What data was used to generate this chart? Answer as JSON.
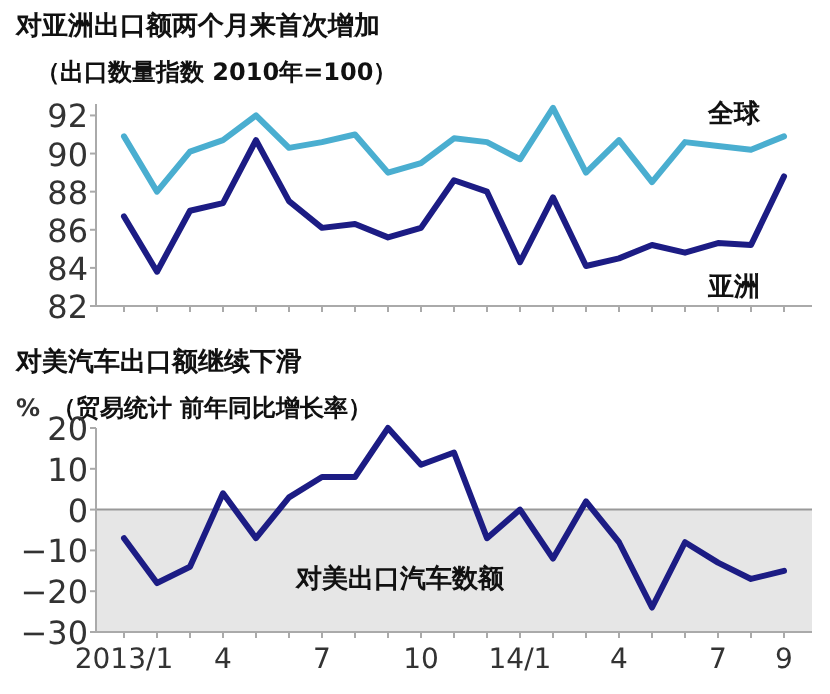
{
  "chart_data": [
    {
      "type": "line",
      "title": "对亚洲出口额两个月来首次增加",
      "subtitle": "（出口数量指数 2010年=100）",
      "categories": [
        null,
        null,
        null,
        null,
        null,
        null,
        null,
        null,
        null,
        null,
        null,
        null,
        null,
        null,
        null,
        null,
        null,
        null,
        null,
        null,
        null
      ],
      "series": [
        {
          "name": "全球",
          "color": "#4aaed0",
          "values": [
            90.9,
            88.0,
            90.1,
            90.7,
            92.0,
            90.3,
            90.6,
            91.0,
            89.0,
            89.5,
            90.8,
            90.6,
            89.7,
            92.4,
            89.0,
            90.7,
            88.5,
            90.6,
            90.4,
            90.2,
            90.9
          ]
        },
        {
          "name": "亚洲",
          "color": "#1c1c84",
          "values": [
            86.7,
            83.8,
            87.0,
            87.4,
            90.7,
            87.5,
            86.1,
            86.3,
            85.6,
            86.1,
            88.6,
            88.0,
            84.3,
            87.7,
            84.1,
            84.5,
            85.2,
            84.8,
            85.3,
            85.2,
            88.8
          ]
        }
      ],
      "ylim": [
        82,
        92.6
      ],
      "yticks": [
        82,
        84,
        86,
        88,
        90,
        92
      ],
      "tick_labels": "y",
      "grid": false
    },
    {
      "type": "line",
      "title": "对美汽车出口额继续下滑",
      "subtitle": "（贸易统计 前年同比增长率）",
      "ylabel": "%",
      "categories": [
        "2013/1",
        null,
        null,
        "4",
        null,
        null,
        "7",
        null,
        null,
        "10",
        null,
        null,
        "14/1",
        null,
        null,
        "4",
        null,
        null,
        "7",
        null,
        "9"
      ],
      "series": [
        {
          "name": "对美出口汽车数额",
          "color": "#1c1c84",
          "values": [
            -7,
            -18,
            -14,
            4,
            -7,
            3,
            8,
            8,
            20,
            11,
            14,
            -7,
            0,
            -12,
            2,
            -8,
            -24,
            -8,
            -13,
            -17,
            -15
          ]
        }
      ],
      "ylim": [
        -30,
        20
      ],
      "yticks": [
        -30,
        -20,
        -10,
        0,
        10,
        20
      ],
      "bands": [
        {
          "axis": "y",
          "from": -30,
          "to": 0,
          "color": "#e6e6e6"
        }
      ],
      "ref_lines": [
        {
          "axis": "y",
          "value": 0,
          "color": "#999999"
        }
      ],
      "grid": false
    }
  ]
}
